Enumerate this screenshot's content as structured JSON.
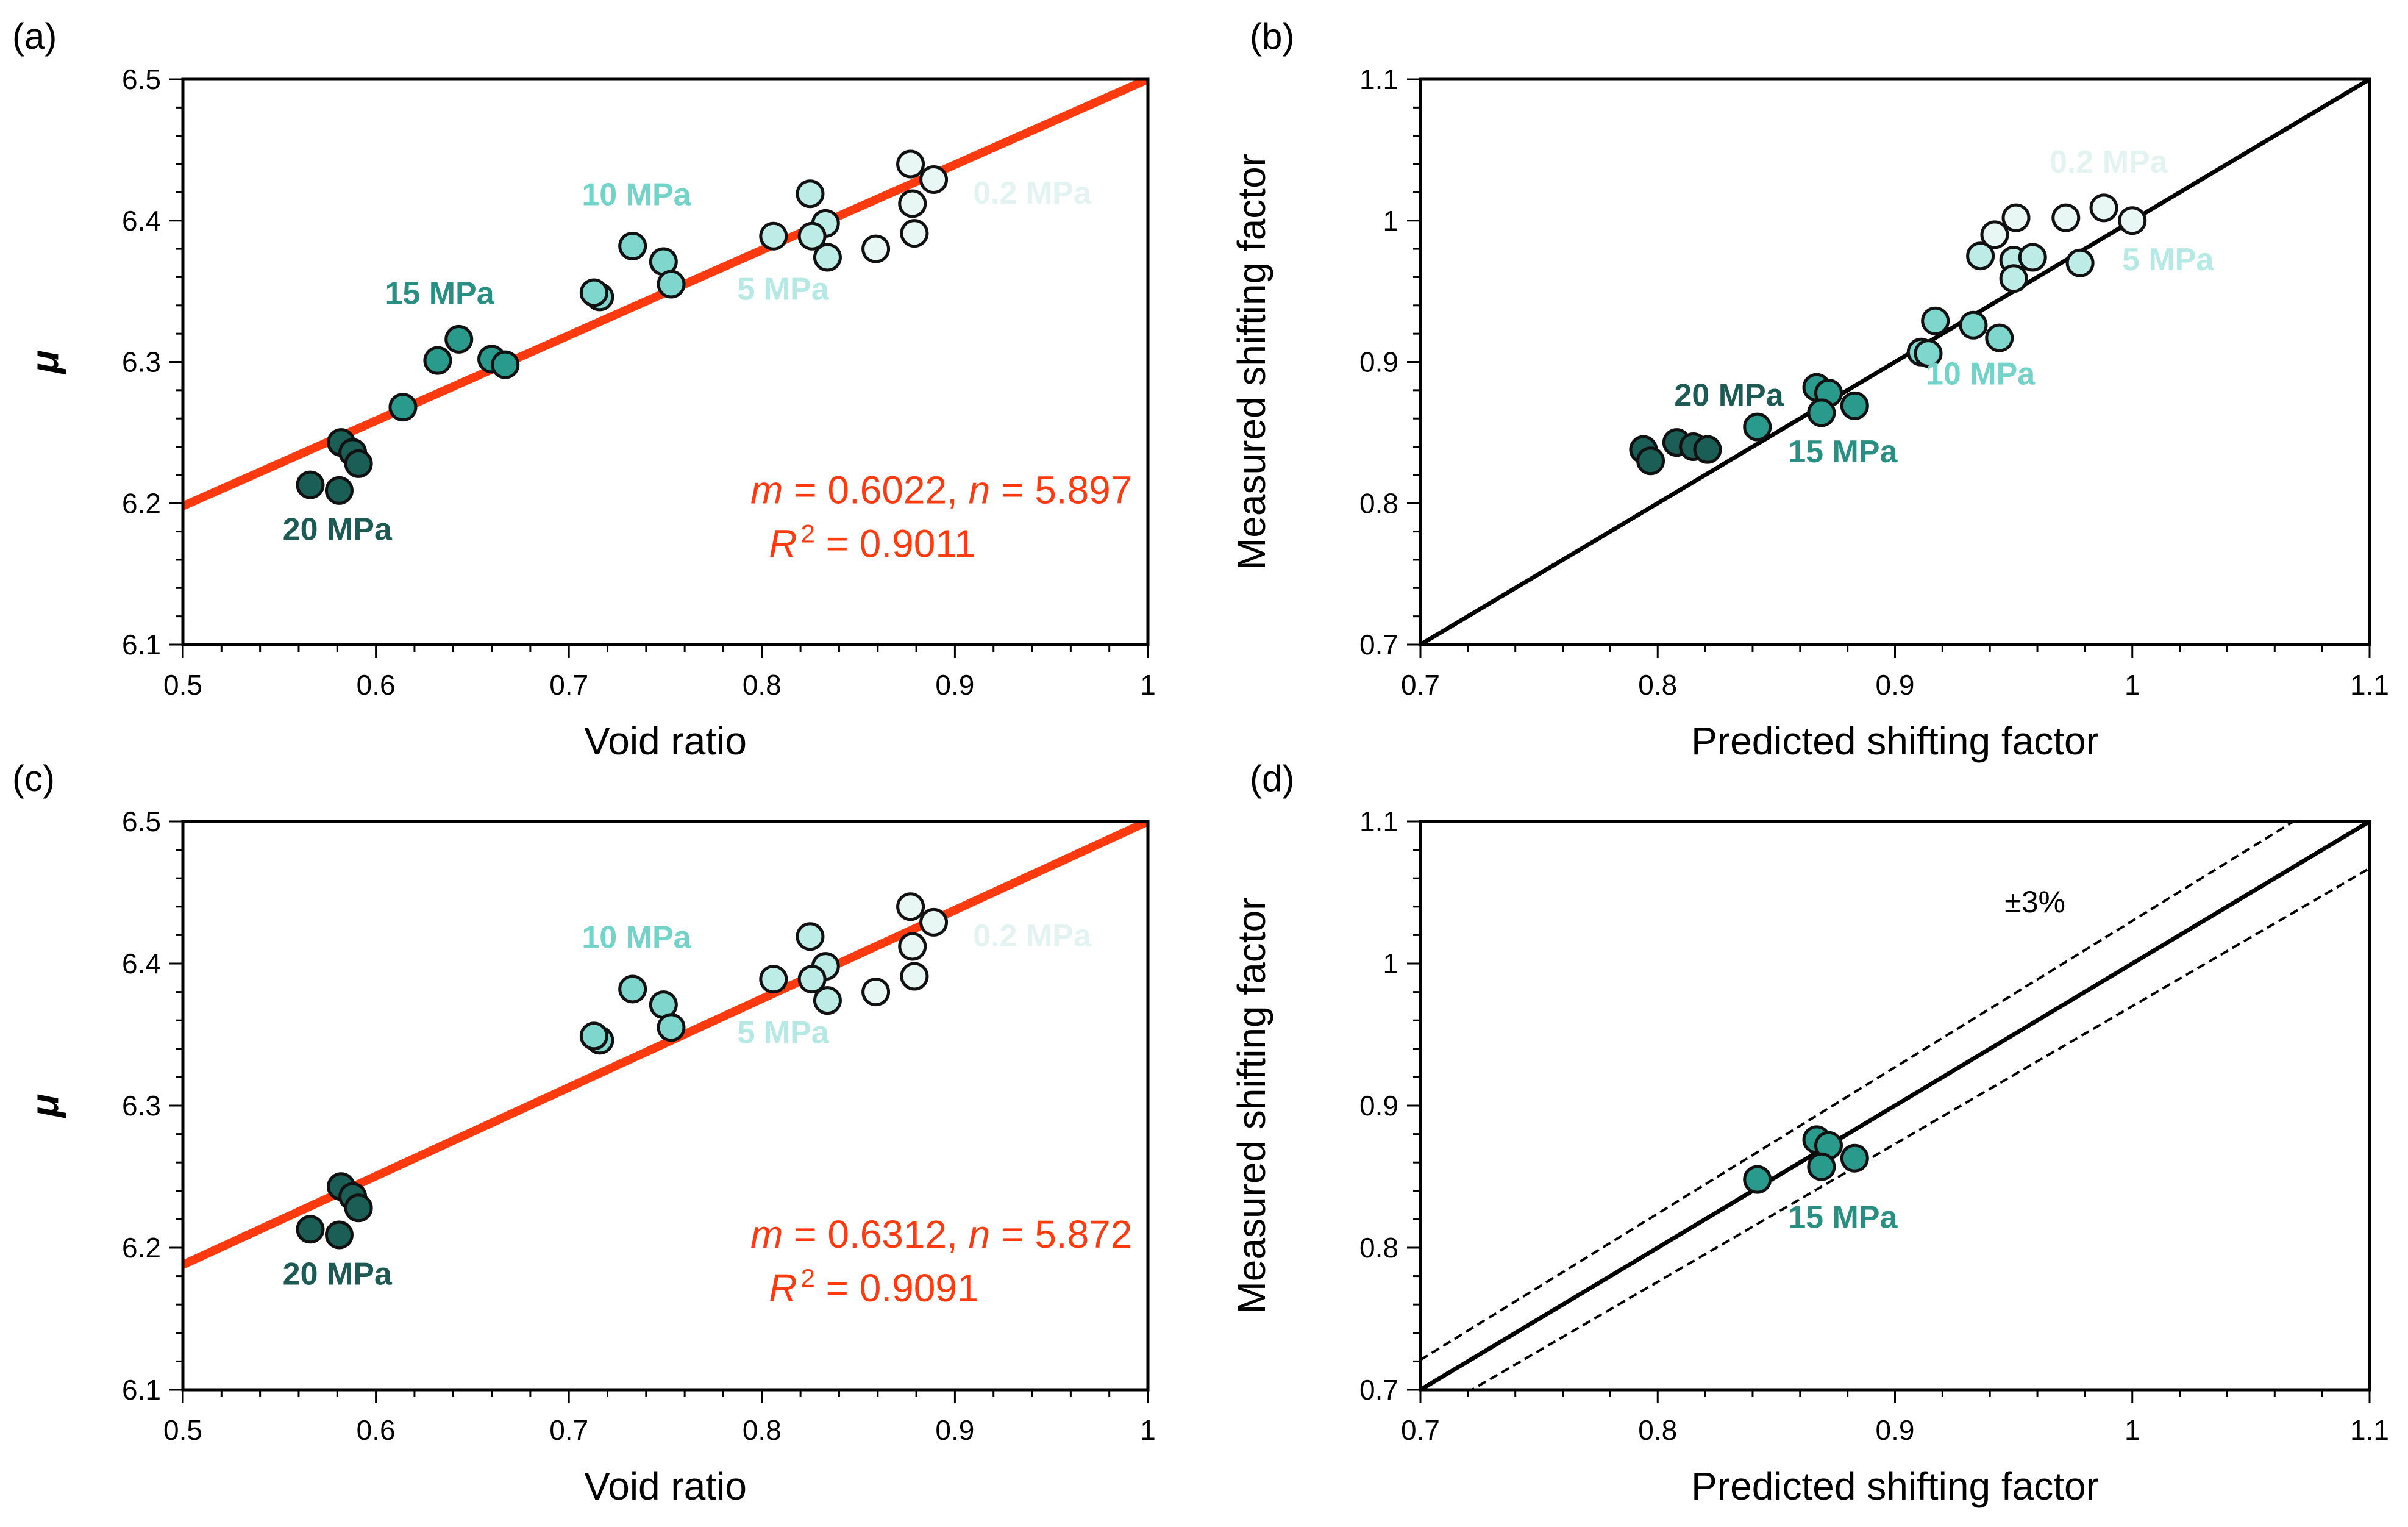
{
  "colors": {
    "c_02": "#e8f6f4",
    "c_5": "#bdebe6",
    "c_10": "#7ed6cc",
    "c_15": "#2a9a8c",
    "c_20": "#1b5e56",
    "fit": "#ff3a0f",
    "label_02": "#e3f3f1",
    "label_5": "#b6e9e3",
    "label_10": "#72d3c8",
    "label_15": "#2a8f83",
    "label_20": "#1d5a53"
  },
  "chart_data": [
    {
      "id": "a",
      "panel_label": "(a)",
      "type": "scatter",
      "xlabel": "Void ratio",
      "ylabel": "μ",
      "xlim": [
        0.5,
        1.0
      ],
      "ylim": [
        6.1,
        6.5
      ],
      "xticks": [
        "0.5",
        "0.6",
        "0.7",
        "0.8",
        "0.9",
        "1"
      ],
      "yticks": [
        "6.1",
        "6.2",
        "6.3",
        "6.4",
        "6.5"
      ],
      "fit_line": {
        "x": [
          0.5,
          1.0
        ],
        "y": [
          6.198,
          6.5
        ]
      },
      "fit_text": {
        "m_label": "m",
        "m_value": " = 0.6022, ",
        "n_label": "n",
        "n_value": " = 5.897",
        "r_label": "R",
        "r_sup": "2",
        "r_value": " = 0.9011"
      },
      "series": [
        {
          "name": "0.2 MPa",
          "color_key": "c_02",
          "points": [
            [
              0.877,
              6.44
            ],
            [
              0.889,
              6.429
            ],
            [
              0.878,
              6.412
            ],
            [
              0.879,
              6.391
            ],
            [
              0.859,
              6.38
            ]
          ]
        },
        {
          "name": "5 MPa",
          "color_key": "c_5",
          "points": [
            [
              0.825,
              6.419
            ],
            [
              0.833,
              6.398
            ],
            [
              0.826,
              6.389
            ],
            [
              0.806,
              6.389
            ],
            [
              0.834,
              6.374
            ]
          ]
        },
        {
          "name": "10 MPa",
          "color_key": "c_10",
          "points": [
            [
              0.733,
              6.382
            ],
            [
              0.749,
              6.371
            ],
            [
              0.753,
              6.355
            ],
            [
              0.716,
              6.346
            ],
            [
              0.713,
              6.349
            ]
          ]
        },
        {
          "name": "15 MPa",
          "color_key": "c_15",
          "points": [
            [
              0.643,
              6.316
            ],
            [
              0.632,
              6.301
            ],
            [
              0.66,
              6.302
            ],
            [
              0.667,
              6.298
            ],
            [
              0.614,
              6.268
            ]
          ]
        },
        {
          "name": "20 MPa",
          "color_key": "c_20",
          "points": [
            [
              0.582,
              6.243
            ],
            [
              0.588,
              6.236
            ],
            [
              0.591,
              6.228
            ],
            [
              0.566,
              6.213
            ],
            [
              0.581,
              6.209
            ]
          ]
        }
      ],
      "group_labels": [
        {
          "text": "0.2 MPa",
          "color_key": "label_02",
          "at": [
            0.94,
            6.412
          ]
        },
        {
          "text": "5 MPa",
          "color_key": "label_5",
          "at": [
            0.811,
            6.344
          ]
        },
        {
          "text": "10 MPa",
          "color_key": "label_10",
          "at": [
            0.735,
            6.411
          ]
        },
        {
          "text": "15 MPa",
          "color_key": "label_15",
          "at": [
            0.633,
            6.341
          ]
        },
        {
          "text": "20 MPa",
          "color_key": "label_20",
          "at": [
            0.58,
            6.174
          ]
        }
      ],
      "fit_anchor": [
        0.893,
        6.2
      ]
    },
    {
      "id": "b",
      "panel_label": "(b)",
      "type": "scatter",
      "xlabel": "Predicted shifting factor",
      "ylabel": "Measured shifting factor",
      "xlim": [
        0.7,
        1.1
      ],
      "ylim": [
        0.7,
        1.1
      ],
      "xticks": [
        "0.7",
        "0.8",
        "0.9",
        "1",
        "1.1"
      ],
      "yticks": [
        "0.7",
        "0.8",
        "0.9",
        "1",
        "1.1"
      ],
      "identity_line": true,
      "series": [
        {
          "name": "0.2 MPa",
          "color_key": "c_02",
          "points": [
            [
              0.988,
              1.009
            ],
            [
              1.0,
              1.0
            ],
            [
              0.972,
              1.002
            ],
            [
              0.951,
              1.002
            ],
            [
              0.942,
              0.99
            ]
          ]
        },
        {
          "name": "5 MPa",
          "color_key": "c_5",
          "points": [
            [
              0.936,
              0.975
            ],
            [
              0.95,
              0.972
            ],
            [
              0.958,
              0.974
            ],
            [
              0.95,
              0.959
            ],
            [
              0.978,
              0.97
            ]
          ]
        },
        {
          "name": "10 MPa",
          "color_key": "c_10",
          "points": [
            [
              0.917,
              0.929
            ],
            [
              0.933,
              0.926
            ],
            [
              0.944,
              0.917
            ],
            [
              0.911,
              0.907
            ],
            [
              0.914,
              0.906
            ]
          ]
        },
        {
          "name": "15 MPa",
          "color_key": "c_15",
          "points": [
            [
              0.867,
              0.882
            ],
            [
              0.872,
              0.878
            ],
            [
              0.883,
              0.869
            ],
            [
              0.869,
              0.864
            ],
            [
              0.842,
              0.854
            ]
          ]
        },
        {
          "name": "20 MPa",
          "color_key": "c_20",
          "points": [
            [
              0.794,
              0.838
            ],
            [
              0.797,
              0.83
            ],
            [
              0.808,
              0.843
            ],
            [
              0.815,
              0.84
            ],
            [
              0.821,
              0.838
            ]
          ]
        }
      ],
      "group_labels": [
        {
          "text": "0.2 MPa",
          "color_key": "label_02",
          "at": [
            0.99,
            1.034
          ]
        },
        {
          "text": "5 MPa",
          "color_key": "label_5",
          "at": [
            1.015,
            0.965
          ]
        },
        {
          "text": "10 MPa",
          "color_key": "label_10",
          "at": [
            0.936,
            0.884
          ]
        },
        {
          "text": "15 MPa",
          "color_key": "label_15",
          "at": [
            0.878,
            0.829
          ]
        },
        {
          "text": "20 MPa",
          "color_key": "label_20",
          "at": [
            0.83,
            0.869
          ]
        }
      ]
    },
    {
      "id": "c",
      "panel_label": "(c)",
      "type": "scatter",
      "xlabel": "Void ratio",
      "ylabel": "μ",
      "xlim": [
        0.5,
        1.0
      ],
      "ylim": [
        6.1,
        6.5
      ],
      "xticks": [
        "0.5",
        "0.6",
        "0.7",
        "0.8",
        "0.9",
        "1"
      ],
      "yticks": [
        "6.1",
        "6.2",
        "6.3",
        "6.4",
        "6.5"
      ],
      "fit_line": {
        "x": [
          0.5,
          1.0
        ],
        "y": [
          6.188,
          6.5
        ]
      },
      "fit_text": {
        "m_label": "m",
        "m_value": " = 0.6312, ",
        "n_label": "n",
        "n_value": " = 5.872",
        "r_label": "R",
        "r_sup": "2",
        "r_value": " = 0.9091"
      },
      "series": [
        {
          "name": "0.2 MPa",
          "color_key": "c_02",
          "points": [
            [
              0.877,
              6.44
            ],
            [
              0.889,
              6.429
            ],
            [
              0.878,
              6.412
            ],
            [
              0.879,
              6.391
            ],
            [
              0.859,
              6.38
            ]
          ]
        },
        {
          "name": "5 MPa",
          "color_key": "c_5",
          "points": [
            [
              0.825,
              6.419
            ],
            [
              0.833,
              6.398
            ],
            [
              0.826,
              6.389
            ],
            [
              0.806,
              6.389
            ],
            [
              0.834,
              6.374
            ]
          ]
        },
        {
          "name": "10 MPa",
          "color_key": "c_10",
          "points": [
            [
              0.733,
              6.382
            ],
            [
              0.749,
              6.371
            ],
            [
              0.753,
              6.355
            ],
            [
              0.716,
              6.346
            ],
            [
              0.713,
              6.349
            ]
          ]
        },
        {
          "name": "20 MPa",
          "color_key": "c_20",
          "points": [
            [
              0.582,
              6.243
            ],
            [
              0.588,
              6.236
            ],
            [
              0.591,
              6.228
            ],
            [
              0.566,
              6.213
            ],
            [
              0.581,
              6.209
            ]
          ]
        }
      ],
      "group_labels": [
        {
          "text": "0.2 MPa",
          "color_key": "label_02",
          "at": [
            0.94,
            6.412
          ]
        },
        {
          "text": "5 MPa",
          "color_key": "label_5",
          "at": [
            0.811,
            6.344
          ]
        },
        {
          "text": "10 MPa",
          "color_key": "label_10",
          "at": [
            0.735,
            6.411
          ]
        },
        {
          "text": "20 MPa",
          "color_key": "label_20",
          "at": [
            0.58,
            6.174
          ]
        }
      ],
      "fit_anchor": [
        0.893,
        6.2
      ]
    },
    {
      "id": "d",
      "panel_label": "(d)",
      "type": "scatter",
      "xlabel": "Predicted shifting factor",
      "ylabel": "Measured shifting factor",
      "xlim": [
        0.7,
        1.1
      ],
      "ylim": [
        0.7,
        1.1
      ],
      "xticks": [
        "0.7",
        "0.8",
        "0.9",
        "1",
        "1.1"
      ],
      "yticks": [
        "0.7",
        "0.8",
        "0.9",
        "1",
        "1.1"
      ],
      "identity_line": true,
      "band_percent": 0.03,
      "band_label": "±3%",
      "band_label_at": [
        0.959,
        1.036
      ],
      "series": [
        {
          "name": "15 MPa",
          "color_key": "c_15",
          "points": [
            [
              0.867,
              0.876
            ],
            [
              0.872,
              0.872
            ],
            [
              0.883,
              0.863
            ],
            [
              0.869,
              0.857
            ],
            [
              0.842,
              0.848
            ]
          ]
        }
      ],
      "group_labels": [
        {
          "text": "15 MPa",
          "color_key": "label_15",
          "at": [
            0.878,
            0.814
          ]
        }
      ]
    }
  ]
}
